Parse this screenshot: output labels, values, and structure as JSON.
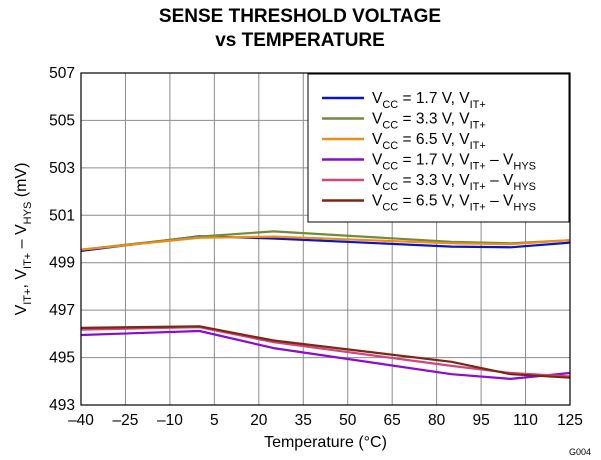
{
  "chart_data": {
    "type": "line",
    "title": [
      "SENSE THRESHOLD VOLTAGE",
      "vs TEMPERATURE"
    ],
    "xlabel": "Temperature (°C)",
    "ylabel": {
      "text": "V",
      "parts": [
        {
          "t": "V",
          "sub": false
        },
        {
          "t": "IT+",
          "sub": true
        },
        {
          "t": ", V",
          "sub": false
        },
        {
          "t": "IT+",
          "sub": true
        },
        {
          "t": " – V",
          "sub": false
        },
        {
          "t": "HYS",
          "sub": true
        },
        {
          "t": " (mV)",
          "sub": false
        }
      ]
    },
    "xlim": [
      -40,
      125
    ],
    "ylim": [
      493,
      507
    ],
    "xticks": [
      -40,
      -25,
      -10,
      5,
      20,
      35,
      50,
      65,
      80,
      95,
      110,
      125
    ],
    "xtick_labels": [
      "–40",
      "–25",
      "–10",
      "5",
      "20",
      "35",
      "50",
      "65",
      "80",
      "95",
      "110",
      "125"
    ],
    "yticks": [
      493,
      495,
      497,
      499,
      501,
      503,
      505,
      507
    ],
    "grid": true,
    "legend_position": "top-right",
    "figure_id": "G004",
    "series": [
      {
        "name": "VCC = 1.7 V, VIT+",
        "label_parts": [
          {
            "t": "V",
            "sub": false
          },
          {
            "t": "CC",
            "sub": true
          },
          {
            "t": " = 1.7 V, V",
            "sub": false
          },
          {
            "t": "IT+",
            "sub": true
          }
        ],
        "color": "#0a14c8",
        "x": [
          -40,
          0,
          25,
          85,
          105,
          125
        ],
        "y": [
          499.5,
          500.12,
          500.02,
          499.68,
          499.65,
          499.85
        ]
      },
      {
        "name": "VCC = 3.3 V, VIT+",
        "label_parts": [
          {
            "t": "V",
            "sub": false
          },
          {
            "t": "CC",
            "sub": true
          },
          {
            "t": " = 3.3 V, V",
            "sub": false
          },
          {
            "t": "IT+",
            "sub": true
          }
        ],
        "color": "#6e8c3c",
        "x": [
          -40,
          0,
          25,
          85,
          105,
          125
        ],
        "y": [
          499.55,
          500.1,
          500.32,
          499.88,
          499.82,
          499.95
        ]
      },
      {
        "name": "VCC = 6.5 V, VIT+",
        "label_parts": [
          {
            "t": "V",
            "sub": false
          },
          {
            "t": "CC",
            "sub": true
          },
          {
            "t": " = 6.5 V, V",
            "sub": false
          },
          {
            "t": "IT+",
            "sub": true
          }
        ],
        "color": "#f08c14",
        "x": [
          -40,
          0,
          25,
          85,
          105,
          125
        ],
        "y": [
          499.55,
          500.05,
          500.1,
          499.82,
          499.78,
          499.95
        ]
      },
      {
        "name": "VCC = 1.7 V, VIT+ – VHYS",
        "label_parts": [
          {
            "t": "V",
            "sub": false
          },
          {
            "t": "CC",
            "sub": true
          },
          {
            "t": " = 1.7 V, V",
            "sub": false
          },
          {
            "t": "IT+",
            "sub": true
          },
          {
            "t": " – V",
            "sub": false
          },
          {
            "t": "HYS",
            "sub": true
          }
        ],
        "color": "#8c0ad2",
        "x": [
          -40,
          0,
          25,
          85,
          105,
          125
        ],
        "y": [
          495.95,
          496.12,
          495.4,
          494.3,
          494.1,
          494.35
        ]
      },
      {
        "name": "VCC = 3.3 V, VIT+ – VHYS",
        "label_parts": [
          {
            "t": "V",
            "sub": false
          },
          {
            "t": "CC",
            "sub": true
          },
          {
            "t": " = 3.3 V, V",
            "sub": false
          },
          {
            "t": "IT+",
            "sub": true
          },
          {
            "t": " – V",
            "sub": false
          },
          {
            "t": "HYS",
            "sub": true
          }
        ],
        "color": "#d2467a",
        "x": [
          -40,
          0,
          25,
          85,
          105,
          125
        ],
        "y": [
          496.18,
          496.28,
          495.65,
          494.65,
          494.35,
          494.2
        ]
      },
      {
        "name": "VCC = 6.5 V, VIT+ – VHYS",
        "label_parts": [
          {
            "t": "V",
            "sub": false
          },
          {
            "t": "CC",
            "sub": true
          },
          {
            "t": " = 6.5 V, V",
            "sub": false
          },
          {
            "t": "IT+",
            "sub": true
          },
          {
            "t": " – V",
            "sub": false
          },
          {
            "t": "HYS",
            "sub": true
          }
        ],
        "color": "#782814",
        "x": [
          -40,
          0,
          25,
          85,
          105,
          125
        ],
        "y": [
          496.25,
          496.32,
          495.72,
          494.82,
          494.3,
          494.15
        ]
      }
    ]
  }
}
